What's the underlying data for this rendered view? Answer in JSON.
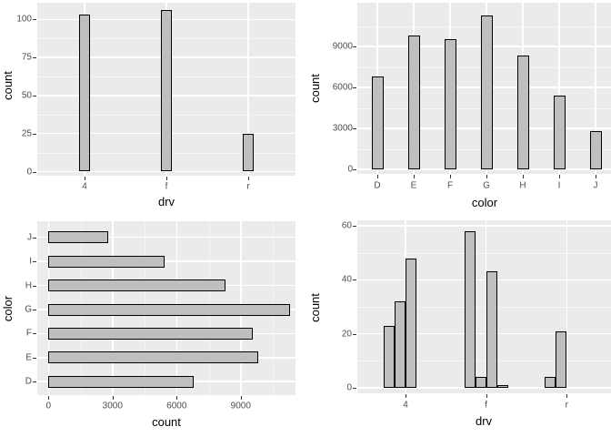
{
  "figure": {
    "background": "#ffffff",
    "panel_background": "#ebebeb",
    "grid_major_color": "#ffffff",
    "grid_minor_color": "#ffffff",
    "bar_fill": "#bfbfbf",
    "bar_border": "#000000",
    "tick_label_color": "#4d4d4d",
    "axis_title_color": "#000000",
    "tick_mark_color": "#333333"
  },
  "chart_data": [
    {
      "id": "top-left",
      "type": "bar",
      "orientation": "vertical",
      "title": "",
      "xlabel": "drv",
      "ylabel": "count",
      "categories": [
        "4",
        "f",
        "r"
      ],
      "values": [
        103,
        106,
        25
      ],
      "y_ticks": [
        0,
        25,
        50,
        75,
        100
      ],
      "y_minor": [
        12.5,
        37.5,
        62.5,
        87.5
      ],
      "ylim": [
        -4,
        111
      ],
      "grid": "on",
      "legend": "none"
    },
    {
      "id": "top-right",
      "type": "bar",
      "orientation": "vertical",
      "title": "",
      "xlabel": "color",
      "ylabel": "count",
      "categories": [
        "D",
        "E",
        "F",
        "G",
        "H",
        "I",
        "J"
      ],
      "values": [
        6775,
        9797,
        9542,
        11292,
        8304,
        5422,
        2808
      ],
      "y_ticks": [
        0,
        3000,
        6000,
        9000
      ],
      "y_minor": [
        1500,
        4500,
        7500,
        10500
      ],
      "ylim": [
        -450,
        12200
      ],
      "grid": "on",
      "legend": "none"
    },
    {
      "id": "bottom-left",
      "type": "bar",
      "orientation": "horizontal",
      "title": "",
      "xlabel": "count",
      "ylabel": "color",
      "categories": [
        "D",
        "E",
        "F",
        "G",
        "H",
        "I",
        "J"
      ],
      "values": [
        6775,
        9797,
        9542,
        11292,
        8304,
        5422,
        2808
      ],
      "x_ticks": [
        0,
        3000,
        6000,
        9000
      ],
      "x_minor": [
        1500,
        4500,
        7500,
        10500
      ],
      "xlim": [
        -450,
        11560
      ],
      "grid": "on",
      "legend": "none"
    },
    {
      "id": "bottom-right",
      "type": "bar",
      "orientation": "vertical",
      "dodged": true,
      "title": "",
      "xlabel": "drv",
      "ylabel": "count",
      "categories": [
        "4",
        "f",
        "r"
      ],
      "groups": [
        {
          "category": "4",
          "values": [
            23,
            32,
            48
          ]
        },
        {
          "category": "f",
          "values": [
            58,
            4,
            43,
            1
          ]
        },
        {
          "category": "r",
          "values": [
            4,
            21
          ]
        }
      ],
      "y_ticks": [
        0,
        20,
        40,
        60
      ],
      "y_minor": [
        10,
        30,
        50
      ],
      "ylim": [
        -3,
        63
      ],
      "grid": "on",
      "legend": "none"
    }
  ]
}
